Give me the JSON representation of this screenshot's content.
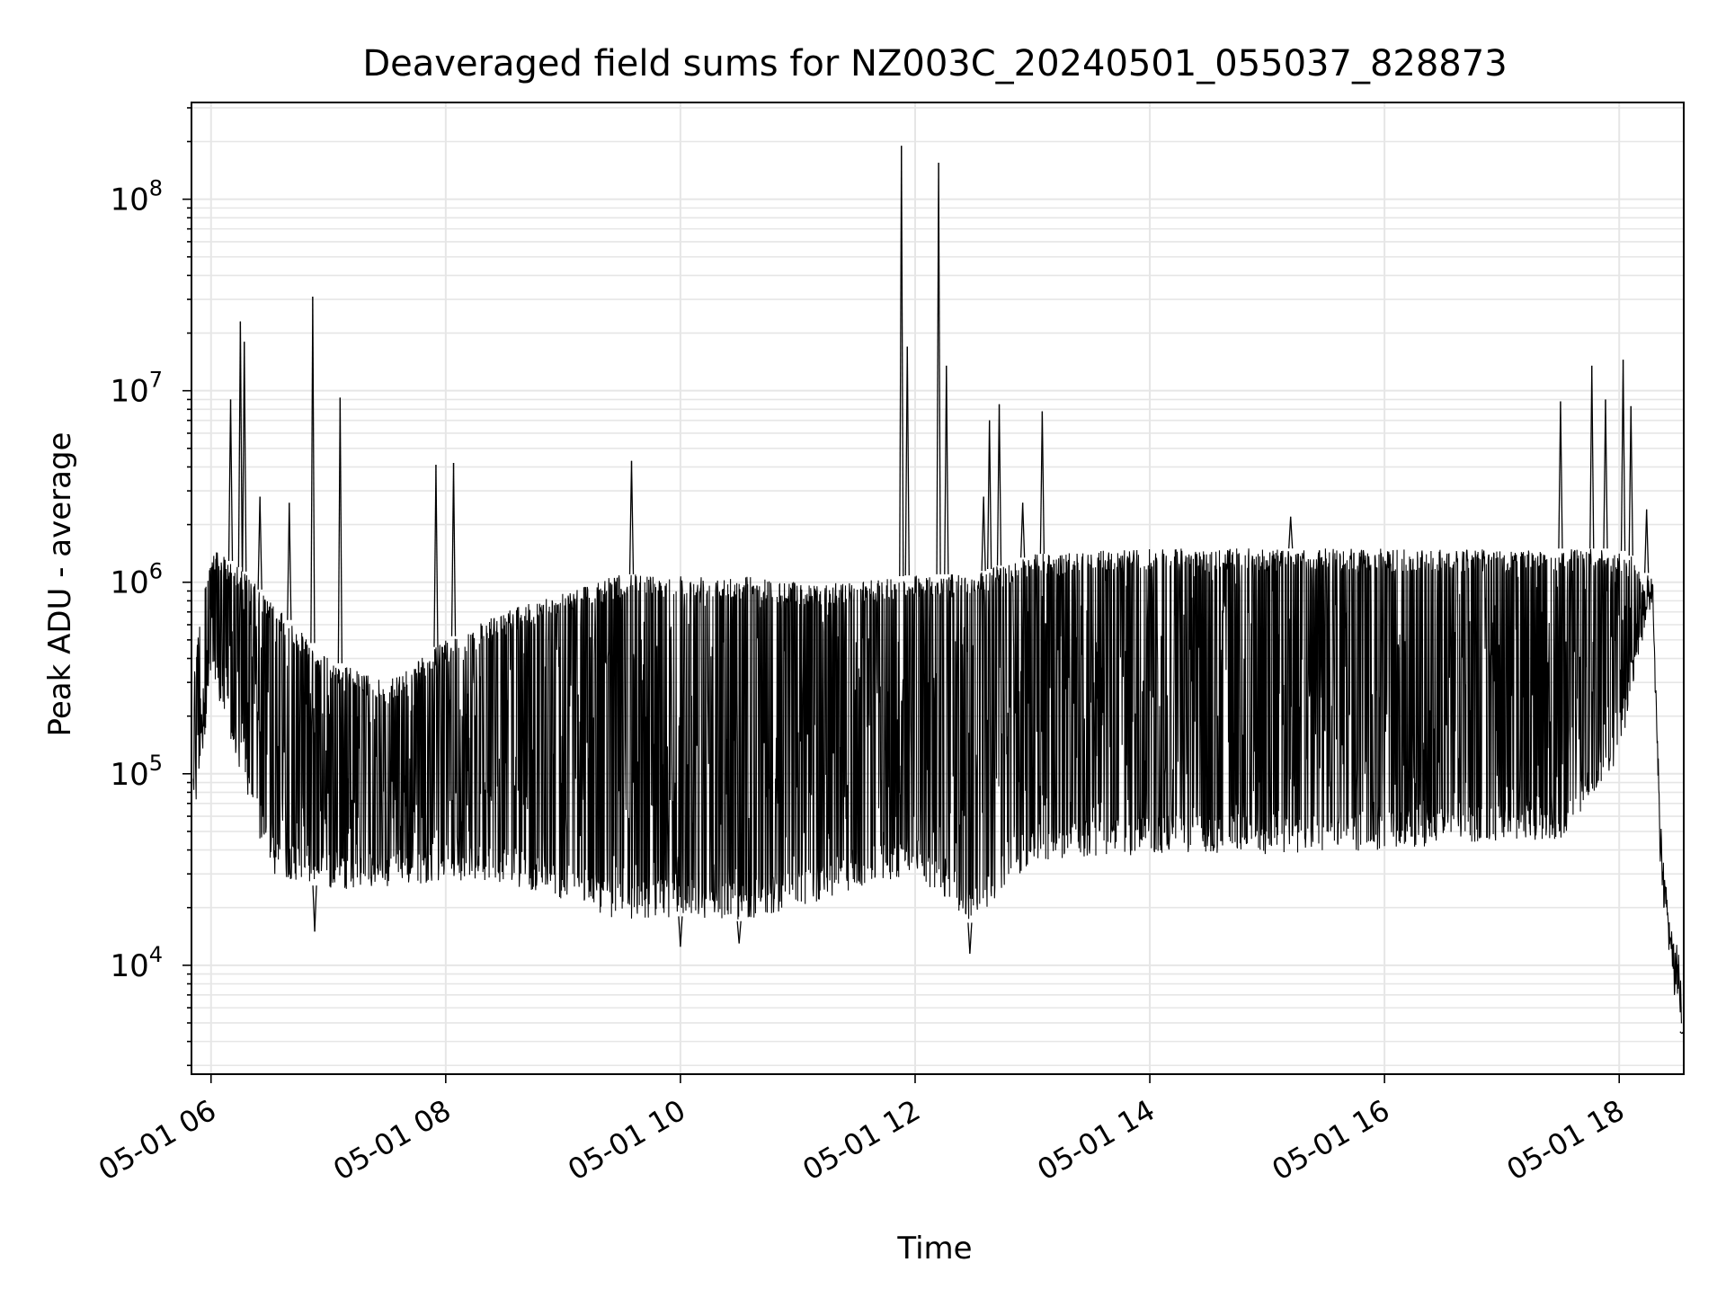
{
  "chart_data": {
    "type": "line",
    "title": "Deaveraged field sums for NZ003C_20240501_055037_828873",
    "xlabel": "Time",
    "ylabel": "Peak ADU - average",
    "yscale": "log",
    "ylim": [
      2700,
      320000000
    ],
    "xlim": [
      "05-01 05:50",
      "05-01 18:33"
    ],
    "grid": true,
    "line_color": "#000000",
    "grid_color": "#e6e6e6",
    "x_ticks": [
      {
        "label": "05-01 06",
        "t": "05-01 06:00"
      },
      {
        "label": "05-01 08",
        "t": "05-01 08:00"
      },
      {
        "label": "05-01 10",
        "t": "05-01 10:00"
      },
      {
        "label": "05-01 12",
        "t": "05-01 12:00"
      },
      {
        "label": "05-01 14",
        "t": "05-01 14:00"
      },
      {
        "label": "05-01 16",
        "t": "05-01 16:00"
      },
      {
        "label": "05-01 18",
        "t": "05-01 18:00"
      }
    ],
    "y_ticks": [
      {
        "mantissa": "10",
        "exp": "4",
        "value": 10000
      },
      {
        "mantissa": "10",
        "exp": "5",
        "value": 100000
      },
      {
        "mantissa": "10",
        "exp": "6",
        "value": 1000000
      },
      {
        "mantissa": "10",
        "exp": "7",
        "value": 10000000
      },
      {
        "mantissa": "10",
        "exp": "8",
        "value": 100000000
      }
    ],
    "envelope": [
      {
        "t": "05-01 05:51",
        "low": 50000,
        "high": 400000
      },
      {
        "t": "05-01 06:00",
        "low": 300000,
        "high": 1500000
      },
      {
        "t": "05-01 06:15",
        "low": 100000,
        "high": 1200000
      },
      {
        "t": "05-01 06:30",
        "low": 30000,
        "high": 800000
      },
      {
        "t": "05-01 07:00",
        "low": 25000,
        "high": 400000
      },
      {
        "t": "05-01 07:30",
        "low": 25000,
        "high": 300000
      },
      {
        "t": "05-01 08:00",
        "low": 28000,
        "high": 500000
      },
      {
        "t": "05-01 08:30",
        "low": 27000,
        "high": 700000
      },
      {
        "t": "05-01 09:00",
        "low": 22000,
        "high": 900000
      },
      {
        "t": "05-01 09:30",
        "low": 17000,
        "high": 1100000
      },
      {
        "t": "05-01 10:00",
        "low": 18000,
        "high": 1100000
      },
      {
        "t": "05-01 10:30",
        "low": 17000,
        "high": 1100000
      },
      {
        "t": "05-01 11:00",
        "low": 20000,
        "high": 1000000
      },
      {
        "t": "05-01 11:30",
        "low": 25000,
        "high": 1000000
      },
      {
        "t": "05-01 12:00",
        "low": 30000,
        "high": 1100000
      },
      {
        "t": "05-01 12:30",
        "low": 16000,
        "high": 1100000
      },
      {
        "t": "05-01 13:00",
        "low": 35000,
        "high": 1400000
      },
      {
        "t": "05-01 14:00",
        "low": 38000,
        "high": 1500000
      },
      {
        "t": "05-01 15:00",
        "low": 38000,
        "high": 1500000
      },
      {
        "t": "05-01 16:00",
        "low": 40000,
        "high": 1500000
      },
      {
        "t": "05-01 17:00",
        "low": 45000,
        "high": 1500000
      },
      {
        "t": "05-01 17:30",
        "low": 45000,
        "high": 1500000
      },
      {
        "t": "05-01 18:00",
        "low": 120000,
        "high": 1500000
      },
      {
        "t": "05-01 18:10",
        "low": 400000,
        "high": 1300000
      },
      {
        "t": "05-01 18:17",
        "low": 800000,
        "high": 1000000
      },
      {
        "t": "05-01 18:21",
        "low": 30000,
        "high": 60000
      },
      {
        "t": "05-01 18:25",
        "low": 10000,
        "high": 20000
      },
      {
        "t": "05-01 18:32",
        "low": 4500,
        "high": 10000
      }
    ],
    "spikes": [
      {
        "t": "05-01 06:10",
        "value": 9000000
      },
      {
        "t": "05-01 06:15",
        "value": 23000000
      },
      {
        "t": "05-01 06:17",
        "value": 18000000
      },
      {
        "t": "05-01 06:25",
        "value": 2800000
      },
      {
        "t": "05-01 06:40",
        "value": 2600000
      },
      {
        "t": "05-01 06:52",
        "value": 31000000
      },
      {
        "t": "05-01 07:06",
        "value": 9200000
      },
      {
        "t": "05-01 07:55",
        "value": 4100000
      },
      {
        "t": "05-01 08:04",
        "value": 4200000
      },
      {
        "t": "05-01 09:35",
        "value": 4300000
      },
      {
        "t": "05-01 11:53",
        "value": 190000000
      },
      {
        "t": "05-01 11:56",
        "value": 17000000
      },
      {
        "t": "05-01 12:12",
        "value": 155000000
      },
      {
        "t": "05-01 12:16",
        "value": 13500000
      },
      {
        "t": "05-01 12:35",
        "value": 2800000
      },
      {
        "t": "05-01 12:38",
        "value": 7000000
      },
      {
        "t": "05-01 12:43",
        "value": 8500000
      },
      {
        "t": "05-01 12:55",
        "value": 2600000
      },
      {
        "t": "05-01 13:05",
        "value": 7800000
      },
      {
        "t": "05-01 15:12",
        "value": 2200000
      },
      {
        "t": "05-01 17:30",
        "value": 8800000
      },
      {
        "t": "05-01 17:46",
        "value": 13500000
      },
      {
        "t": "05-01 17:53",
        "value": 9000000
      },
      {
        "t": "05-01 18:02",
        "value": 14500000
      },
      {
        "t": "05-01 18:06",
        "value": 8300000
      },
      {
        "t": "05-01 18:14",
        "value": 2400000
      }
    ],
    "dips": [
      {
        "t": "05-01 06:53",
        "value": 15000
      },
      {
        "t": "05-01 10:00",
        "value": 12500
      },
      {
        "t": "05-01 10:30",
        "value": 13000
      },
      {
        "t": "05-01 12:28",
        "value": 11500
      },
      {
        "t": "05-01 18:32",
        "value": 4400
      }
    ]
  }
}
